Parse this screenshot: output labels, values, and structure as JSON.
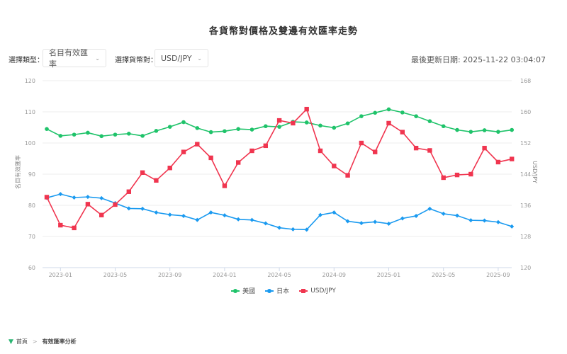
{
  "title": "各貨幣對價格及雙邊有效匯率走勢",
  "controls": {
    "type_label": "選擇類型：",
    "type_value": "名目有效匯率",
    "pair_label": "選擇貨幣對：",
    "pair_value": "USD/JPY",
    "chevron": "⌄"
  },
  "updated": "最後更新日期: 2025-11-22 03:04:07",
  "legend": [
    {
      "label": "美國",
      "color": "#1fc36a"
    },
    {
      "label": "日本",
      "color": "#1a9af0"
    },
    {
      "label": "USD/JPY",
      "color": "#f0354f"
    }
  ],
  "breadcrumb": {
    "home": "首頁",
    "separator": ">",
    "current": "有效匯率分析"
  },
  "chart_data": {
    "type": "line",
    "title": "各貨幣對價格及雙邊有效匯率走勢",
    "xlabel": "",
    "ylabel": "名目有效匯率",
    "y2label": "USD/JPY",
    "ylim": [
      60,
      120
    ],
    "y2lim": [
      120,
      168
    ],
    "yticks": [
      60,
      70,
      80,
      90,
      100,
      110,
      120
    ],
    "y2ticks": [
      120,
      128,
      136,
      144,
      152,
      160,
      168
    ],
    "xtick_labels": [
      "2023-01",
      "2023-05",
      "2023-09",
      "2024-01",
      "2024-05",
      "2024-09",
      "2025-01",
      "2025-05",
      "2025-09"
    ],
    "grid": true,
    "legend_position": "bottom",
    "x": [
      "2022-12",
      "2023-01",
      "2023-02",
      "2023-03",
      "2023-04",
      "2023-05",
      "2023-06",
      "2023-07",
      "2023-08",
      "2023-09",
      "2023-10",
      "2023-11",
      "2023-12",
      "2024-01",
      "2024-02",
      "2024-03",
      "2024-04",
      "2024-05",
      "2024-06",
      "2024-07",
      "2024-08",
      "2024-09",
      "2024-10",
      "2024-11",
      "2024-12",
      "2025-01",
      "2025-02",
      "2025-03",
      "2025-04",
      "2025-05",
      "2025-06",
      "2025-07",
      "2025-08",
      "2025-09",
      "2025-10"
    ],
    "series": [
      {
        "name": "美國",
        "axis": "left",
        "color": "#1fc36a",
        "marker": "circle",
        "values": [
          104.5,
          102.3,
          102.7,
          103.3,
          102.2,
          102.7,
          103.0,
          102.3,
          103.9,
          105.2,
          106.7,
          104.8,
          103.5,
          103.8,
          104.5,
          104.3,
          105.4,
          105.2,
          106.8,
          106.6,
          105.6,
          104.9,
          106.3,
          108.6,
          109.7,
          110.8,
          109.8,
          108.6,
          107.0,
          105.4,
          104.2,
          103.6,
          104.1,
          103.6,
          104.2
        ]
      },
      {
        "name": "日本",
        "axis": "left",
        "color": "#1a9af0",
        "marker": "diamond",
        "values": [
          82.4,
          83.6,
          82.5,
          82.7,
          82.3,
          80.7,
          79.0,
          78.9,
          77.7,
          77.0,
          76.6,
          75.3,
          77.7,
          76.8,
          75.5,
          75.3,
          74.2,
          72.8,
          72.3,
          72.2,
          76.9,
          77.7,
          74.9,
          74.3,
          74.7,
          74.1,
          75.8,
          76.6,
          78.9,
          77.3,
          76.7,
          75.2,
          75.1,
          74.6,
          73.2
        ]
      },
      {
        "name": "USD/JPY",
        "axis": "right",
        "color": "#f0354f",
        "marker": "square",
        "values": [
          138.1,
          130.9,
          130.2,
          136.3,
          133.5,
          136.2,
          139.5,
          144.4,
          142.4,
          145.6,
          149.7,
          151.7,
          148.2,
          141.0,
          147.0,
          150.0,
          151.3,
          157.8,
          157.1,
          160.7,
          150.0,
          146.1,
          143.7,
          152.0,
          149.7,
          157.1,
          154.8,
          150.7,
          150.1,
          143.1,
          143.8,
          144.0,
          150.7,
          147.1,
          147.9
        ]
      }
    ]
  }
}
